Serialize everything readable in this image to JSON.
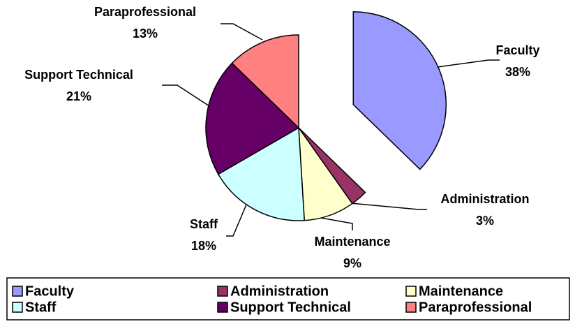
{
  "chart_data": {
    "type": "pie",
    "categories": [
      "Faculty",
      "Administration",
      "Maintenance",
      "Staff",
      "Support Technical",
      "Paraprofessional"
    ],
    "values": [
      38,
      3,
      9,
      18,
      21,
      13
    ],
    "value_labels": [
      "38%",
      "3%",
      "9%",
      "18%",
      "21%",
      "13%"
    ],
    "colors": [
      "#9999ff",
      "#993366",
      "#ffffcc",
      "#ccffff",
      "#660066",
      "#ff8080"
    ],
    "exploded": [
      "Faculty"
    ],
    "legend": "bottom"
  }
}
